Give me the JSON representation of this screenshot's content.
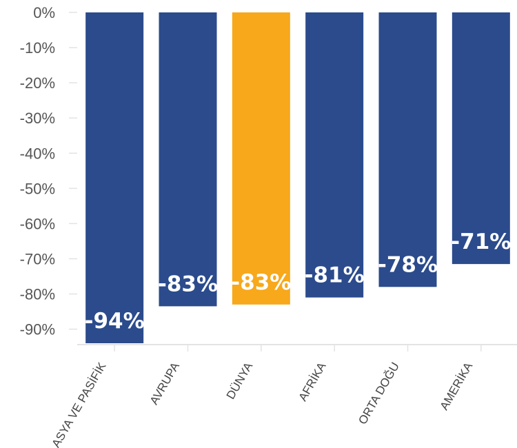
{
  "chart_data": {
    "type": "bar",
    "categories": [
      "ASYA VE PASİFİK",
      "AVRUPA",
      "DÜNYA",
      "AFRİKA",
      "ORTA DOĞU",
      "AMERİKA"
    ],
    "values": [
      -94,
      -83.5,
      -83,
      -81,
      -78,
      -71.5
    ],
    "data_labels": [
      "-94%",
      "-83%",
      "-83%",
      "-81%",
      "-78%",
      "-71%"
    ],
    "y_ticks": [
      0,
      -10,
      -20,
      -30,
      -40,
      -50,
      -60,
      -70,
      -80,
      -90
    ],
    "y_tick_labels": [
      "0%",
      "-10%",
      "-20%",
      "-30%",
      "-40%",
      "-50%",
      "-60%",
      "-70%",
      "-80%",
      "-90%"
    ],
    "ylim": [
      -94,
      0
    ],
    "colors": [
      "#2b4b8c",
      "#2b4b8c",
      "#f7a81b",
      "#2b4b8c",
      "#2b4b8c",
      "#2b4b8c"
    ],
    "title": "",
    "xlabel": "",
    "ylabel": "",
    "grid": false,
    "legend": "none"
  }
}
